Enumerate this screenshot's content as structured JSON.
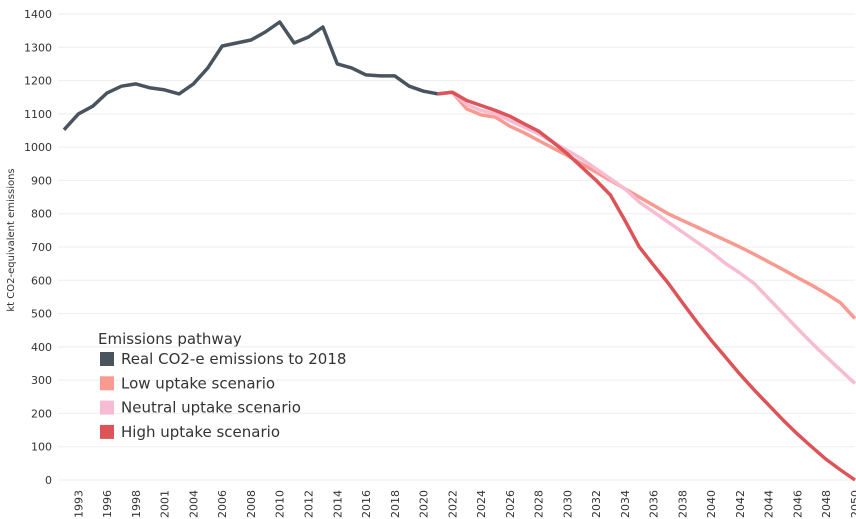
{
  "chart_data": {
    "type": "line",
    "y_label": "kt CO2-equivalent emissions",
    "legend_title": "Emissions pathway",
    "legend_position": "lower left",
    "grid": true,
    "categories": [
      null,
      "1993",
      null,
      "1996",
      null,
      "1998",
      null,
      "2001",
      null,
      "2004",
      null,
      "2006",
      null,
      "2008",
      null,
      "2010",
      null,
      "2012",
      null,
      "2014",
      null,
      "2016",
      null,
      "2018",
      null,
      "2020",
      null,
      "2022",
      null,
      "2024",
      null,
      "2026",
      null,
      "2028",
      null,
      "2030",
      null,
      "2032",
      null,
      "2034",
      null,
      "2036",
      null,
      "2038",
      null,
      "2040",
      null,
      "2042",
      null,
      "2044",
      null,
      "2046",
      null,
      "2048",
      null,
      "2050"
    ],
    "ylim": [
      0,
      1400
    ],
    "yticks": [
      0,
      100,
      200,
      300,
      400,
      500,
      600,
      700,
      800,
      900,
      1000,
      1100,
      1200,
      1300,
      1400
    ],
    "series": [
      {
        "name": "Real CO2-e emissions to 2018",
        "color": "#4a545e",
        "values": [
          1052,
          1100,
          1123,
          1163,
          1183,
          1190,
          1178,
          1172,
          1160,
          1190,
          1238,
          1304,
          1313,
          1322,
          1346,
          1376,
          1313,
          1331,
          1361,
          1250,
          1238,
          1217,
          1214,
          1214,
          1183,
          1168,
          1160,
          null,
          null,
          null,
          null,
          null,
          null,
          null,
          null,
          null,
          null,
          null,
          null,
          null,
          null,
          null,
          null,
          null,
          null,
          null,
          null,
          null,
          null,
          null,
          null,
          null,
          null,
          null,
          null,
          null
        ]
      },
      {
        "name": "Low uptake scenario",
        "color": "#f89a90",
        "values": [
          null,
          null,
          null,
          null,
          null,
          null,
          null,
          null,
          null,
          null,
          null,
          null,
          null,
          null,
          null,
          null,
          null,
          null,
          null,
          null,
          null,
          null,
          null,
          null,
          null,
          null,
          1160,
          1165,
          1115,
          1097,
          1090,
          1063,
          1043,
          1020,
          997,
          975,
          950,
          925,
          900,
          875,
          850,
          825,
          800,
          780,
          760,
          740,
          720,
          700,
          678,
          655,
          632,
          608,
          585,
          560,
          532,
          485
        ]
      },
      {
        "name": "Neutral uptake scenario",
        "color": "#f7bcd3",
        "values": [
          null,
          null,
          null,
          null,
          null,
          null,
          null,
          null,
          null,
          null,
          null,
          null,
          null,
          null,
          null,
          null,
          null,
          null,
          null,
          null,
          null,
          null,
          null,
          null,
          null,
          null,
          1160,
          1165,
          1128,
          1110,
          1100,
          1080,
          1060,
          1040,
          1015,
          990,
          965,
          935,
          905,
          875,
          835,
          805,
          775,
          745,
          715,
          685,
          650,
          622,
          590,
          545,
          500,
          455,
          411,
          370,
          330,
          290
        ]
      },
      {
        "name": "High uptake scenario",
        "color": "#dc5358",
        "values": [
          null,
          null,
          null,
          null,
          null,
          null,
          null,
          null,
          null,
          null,
          null,
          null,
          null,
          null,
          null,
          null,
          null,
          null,
          null,
          null,
          null,
          null,
          null,
          null,
          null,
          null,
          1160,
          1165,
          1140,
          1125,
          1110,
          1093,
          1070,
          1048,
          1015,
          980,
          940,
          900,
          856,
          780,
          700,
          645,
          592,
          533,
          475,
          420,
          369,
          318,
          270,
          225,
          180,
          138,
          99,
          62,
          30,
          0
        ]
      }
    ]
  }
}
